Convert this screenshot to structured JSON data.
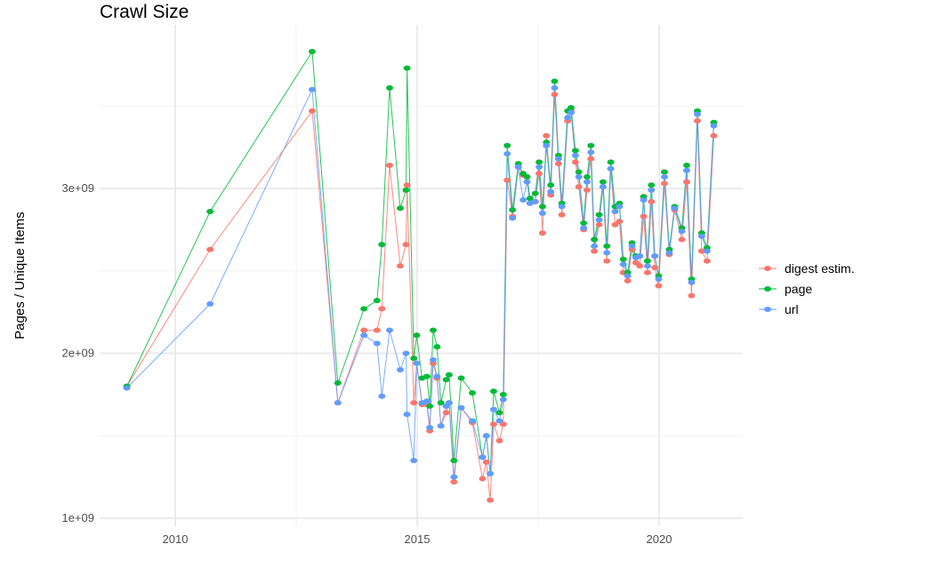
{
  "chart_data": {
    "type": "line",
    "title": "Crawl Size",
    "xlabel": "",
    "ylabel": "Pages / Unique Items",
    "xlim": [
      2008.5,
      2021.8
    ],
    "ylim": [
      970000000.0,
      3900000000.0
    ],
    "x_ticks": [
      2010,
      2015,
      2020
    ],
    "x_tick_labels": [
      "2010",
      "2015",
      "2020"
    ],
    "y_ticks": [
      1000000000.0,
      2000000000.0,
      3000000000.0
    ],
    "y_tick_labels": [
      "1e+09",
      "2e+09",
      "3e+09"
    ],
    "grid": true,
    "legend_position": "right",
    "x": [
      2009.0,
      2010.72,
      2012.83,
      2013.36,
      2013.9,
      2014.17,
      2014.27,
      2014.43,
      2014.65,
      2014.77,
      2014.79,
      2014.93,
      2014.99,
      2015.1,
      2015.2,
      2015.26,
      2015.33,
      2015.41,
      2015.49,
      2015.6,
      2015.66,
      2015.76,
      2015.91,
      2016.14,
      2016.35,
      2016.43,
      2016.51,
      2016.58,
      2016.7,
      2016.78,
      2016.86,
      2016.97,
      2017.09,
      2017.19,
      2017.27,
      2017.33,
      2017.44,
      2017.52,
      2017.59,
      2017.67,
      2017.76,
      2017.84,
      2017.92,
      2017.99,
      2018.11,
      2018.18,
      2018.27,
      2018.34,
      2018.44,
      2018.51,
      2018.59,
      2018.66,
      2018.76,
      2018.84,
      2018.92,
      2019.0,
      2019.09,
      2019.18,
      2019.26,
      2019.35,
      2019.44,
      2019.52,
      2019.6,
      2019.68,
      2019.76,
      2019.84,
      2019.91,
      2019.99,
      2020.11,
      2020.21,
      2020.32,
      2020.47,
      2020.57,
      2020.67,
      2020.79,
      2020.88,
      2020.99,
      2021.13
    ],
    "series": [
      {
        "name": "digest estim.",
        "color": "#F8766D",
        "values": [
          1800000000.0,
          2630000000.0,
          3470000000.0,
          1700000000.0,
          2140000000.0,
          2140000000.0,
          2270000000.0,
          3140000000.0,
          2530000000.0,
          2660000000.0,
          3020000000.0,
          1700000000.0,
          1940000000.0,
          1690000000.0,
          1690000000.0,
          1530000000.0,
          1940000000.0,
          1850000000.0,
          1560000000.0,
          1640000000.0,
          1700000000.0,
          1220000000.0,
          1670000000.0,
          1580000000.0,
          1240000000.0,
          1340000000.0,
          1110000000.0,
          1570000000.0,
          1470000000.0,
          1570000000.0,
          3050000000.0,
          2830000000.0,
          3130000000.0,
          3080000000.0,
          3070000000.0,
          2910000000.0,
          2920000000.0,
          3090000000.0,
          2730000000.0,
          3320000000.0,
          2960000000.0,
          3570000000.0,
          3150000000.0,
          2840000000.0,
          3410000000.0,
          3470000000.0,
          3160000000.0,
          3010000000.0,
          2750000000.0,
          2990000000.0,
          3180000000.0,
          2620000000.0,
          2780000000.0,
          3010000000.0,
          2560000000.0,
          3120000000.0,
          2780000000.0,
          2800000000.0,
          2490000000.0,
          2440000000.0,
          2630000000.0,
          2550000000.0,
          2530000000.0,
          2830000000.0,
          2490000000.0,
          2920000000.0,
          2520000000.0,
          2410000000.0,
          3030000000.0,
          2600000000.0,
          2870000000.0,
          2690000000.0,
          3040000000.0,
          2350000000.0,
          3410000000.0,
          2620000000.0,
          2560000000.0,
          3320000000.0
        ]
      },
      {
        "name": "page",
        "color": "#00BA38",
        "values": [
          1800000000.0,
          2860000000.0,
          3830000000.0,
          1820000000.0,
          2270000000.0,
          2320000000.0,
          2660000000.0,
          3610000000.0,
          2880000000.0,
          2990000000.0,
          3730000000.0,
          1970000000.0,
          2110000000.0,
          1850000000.0,
          1860000000.0,
          1680000000.0,
          2140000000.0,
          2040000000.0,
          1700000000.0,
          1840000000.0,
          1870000000.0,
          1350000000.0,
          1850000000.0,
          1760000000.0,
          1370000000.0,
          1500000000.0,
          1270000000.0,
          1770000000.0,
          1640000000.0,
          1750000000.0,
          3260000000.0,
          2870000000.0,
          3150000000.0,
          3090000000.0,
          3070000000.0,
          2940000000.0,
          2970000000.0,
          3160000000.0,
          2890000000.0,
          3280000000.0,
          3020000000.0,
          3650000000.0,
          3200000000.0,
          2910000000.0,
          3470000000.0,
          3490000000.0,
          3230000000.0,
          3100000000.0,
          2790000000.0,
          3070000000.0,
          3260000000.0,
          2690000000.0,
          2840000000.0,
          3040000000.0,
          2650000000.0,
          3160000000.0,
          2890000000.0,
          2910000000.0,
          2570000000.0,
          2490000000.0,
          2670000000.0,
          2590000000.0,
          2590000000.0,
          2950000000.0,
          2560000000.0,
          3020000000.0,
          2590000000.0,
          2470000000.0,
          3100000000.0,
          2630000000.0,
          2890000000.0,
          2760000000.0,
          3140000000.0,
          2450000000.0,
          3470000000.0,
          2730000000.0,
          2640000000.0,
          3400000000.0
        ]
      },
      {
        "name": "url",
        "color": "#619CFF",
        "values": [
          1790000000.0,
          2300000000.0,
          3600000000.0,
          1700000000.0,
          2110000000.0,
          2060000000.0,
          1740000000.0,
          2140000000.0,
          1900000000.0,
          2000000000.0,
          1630000000.0,
          1350000000.0,
          1940000000.0,
          1700000000.0,
          1710000000.0,
          1550000000.0,
          1960000000.0,
          1860000000.0,
          1560000000.0,
          1680000000.0,
          1700000000.0,
          1250000000.0,
          1670000000.0,
          1590000000.0,
          1370000000.0,
          1500000000.0,
          1270000000.0,
          1660000000.0,
          1590000000.0,
          1720000000.0,
          3210000000.0,
          2820000000.0,
          3130000000.0,
          2930000000.0,
          3040000000.0,
          2910000000.0,
          2920000000.0,
          3130000000.0,
          2850000000.0,
          3260000000.0,
          2980000000.0,
          3610000000.0,
          3180000000.0,
          2890000000.0,
          3430000000.0,
          3460000000.0,
          3200000000.0,
          3070000000.0,
          2760000000.0,
          3040000000.0,
          3220000000.0,
          2650000000.0,
          2810000000.0,
          3010000000.0,
          2610000000.0,
          3120000000.0,
          2860000000.0,
          2890000000.0,
          2540000000.0,
          2470000000.0,
          2650000000.0,
          2580000000.0,
          2590000000.0,
          2930000000.0,
          2530000000.0,
          2990000000.0,
          2590000000.0,
          2450000000.0,
          3070000000.0,
          2610000000.0,
          2880000000.0,
          2740000000.0,
          3110000000.0,
          2430000000.0,
          3450000000.0,
          2710000000.0,
          2620000000.0,
          3380000000.0
        ]
      }
    ]
  }
}
